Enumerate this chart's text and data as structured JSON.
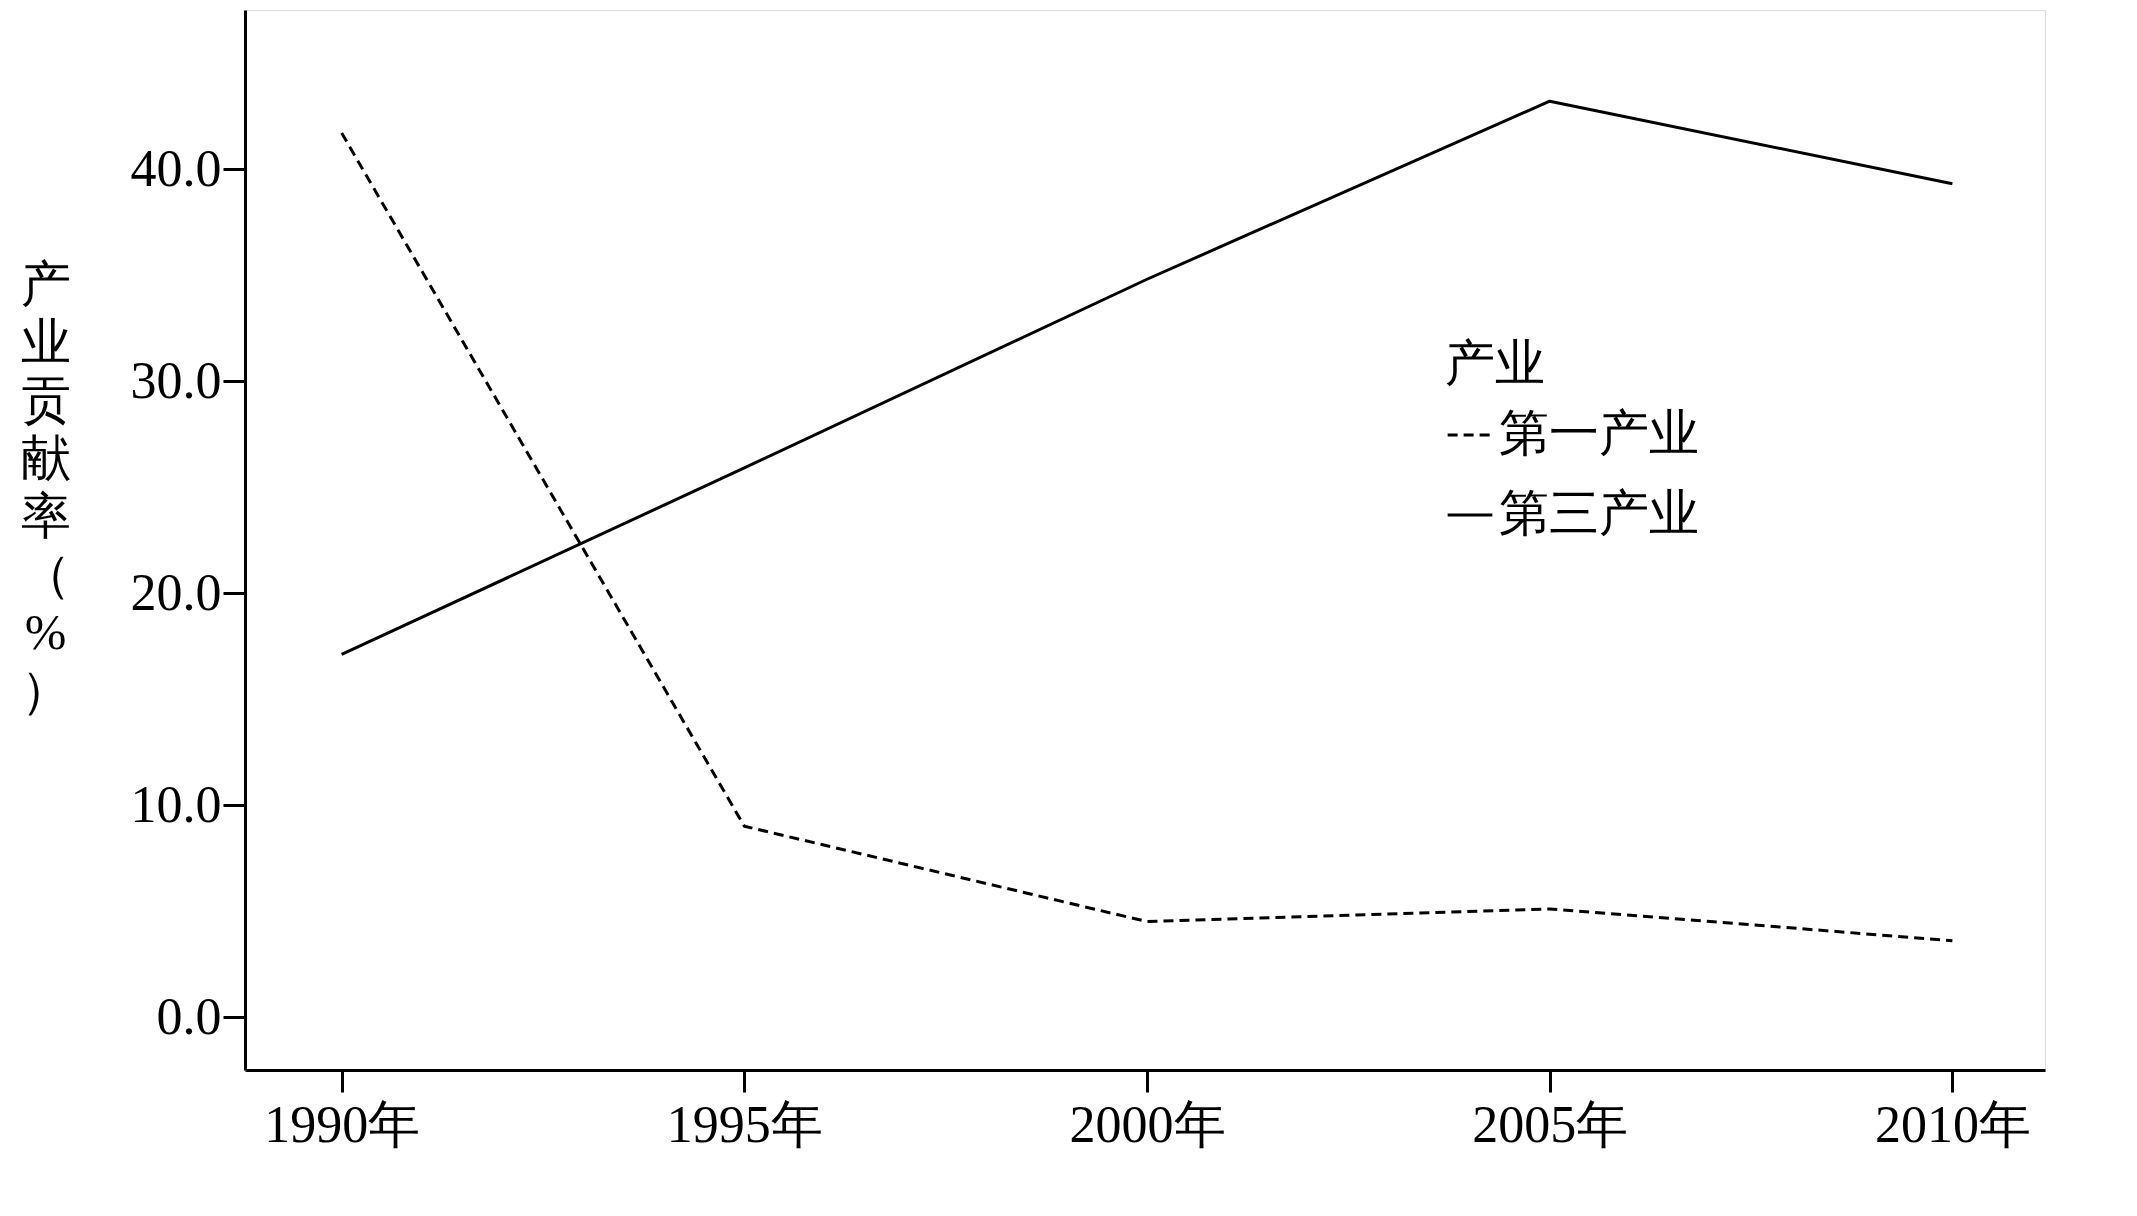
{
  "chart_data": {
    "type": "line",
    "ylabel": "产业贡献率（%）",
    "legend_title": "产业",
    "categories": [
      "1990年",
      "1995年",
      "2000年",
      "2005年",
      "2010年"
    ],
    "series": [
      {
        "name": "第一产业",
        "color": "#000000",
        "line_style": "dashed",
        "values": [
          41.7,
          9.0,
          4.5,
          5.1,
          3.6
        ]
      },
      {
        "name": "第三产业",
        "color": "#000000",
        "line_style": "solid",
        "values": [
          17.1,
          25.9,
          34.8,
          43.2,
          39.3
        ]
      }
    ],
    "ylim": [
      -2.5,
      47.5
    ],
    "yticks": [
      {
        "value": 0,
        "label": "0.0"
      },
      {
        "value": 10,
        "label": "10.0"
      },
      {
        "value": 20,
        "label": "20.0"
      },
      {
        "value": 30,
        "label": "30.0"
      },
      {
        "value": 40,
        "label": "40.0"
      }
    ],
    "grid": false,
    "legend": "right",
    "marker": "none"
  }
}
